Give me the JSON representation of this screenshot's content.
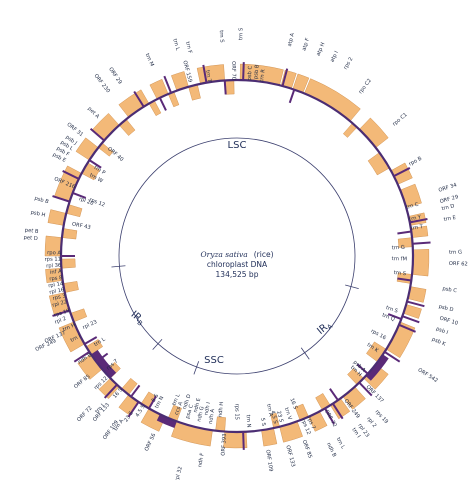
{
  "title": {
    "species": "Oryza sativa",
    "common": "(rice)",
    "line2": "chloroplast DNA",
    "line3": "134,525 bp"
  },
  "regions": [
    {
      "id": "LSC",
      "text": "LSC",
      "angle": 0
    },
    {
      "id": "IRA",
      "text": "IRA",
      "angle": 122
    },
    {
      "id": "SSC",
      "text": "SSC",
      "angle": 180
    },
    {
      "id": "IRB",
      "text": "IRB",
      "angle": 238
    }
  ],
  "colors": {
    "gene": "#f3b978",
    "gene_edge": "#c98643",
    "trna": "#5a2a78",
    "ring": "#4b2d73",
    "label": "#1f2a44",
    "spoke": "#3b3f6e"
  },
  "genes": [
    {
      "a1": 1,
      "a2": 14,
      "side": "out"
    },
    {
      "a1": 14.5,
      "a2": 18,
      "side": "out"
    },
    {
      "a1": 18.5,
      "a2": 22,
      "side": "out"
    },
    {
      "a1": 22.5,
      "a2": 40,
      "side": "out"
    },
    {
      "a1": 44,
      "a2": 52,
      "side": "out"
    },
    {
      "a1": 61,
      "a2": 66,
      "side": "out"
    },
    {
      "a1": 68,
      "a2": 74,
      "side": "out"
    },
    {
      "a1": 77,
      "a2": 80,
      "side": "out"
    },
    {
      "a1": 81,
      "a2": 84,
      "side": "out"
    },
    {
      "a1": 88,
      "a2": 96,
      "side": "out"
    },
    {
      "a1": 100,
      "a2": 104,
      "side": "out"
    },
    {
      "a1": 106,
      "a2": 109,
      "side": "out"
    },
    {
      "a1": 112,
      "a2": 122,
      "side": "out"
    },
    {
      "a1": 128,
      "a2": 134,
      "side": "out"
    },
    {
      "a1": 138,
      "a2": 143,
      "side": "out"
    },
    {
      "a1": 144,
      "a2": 148,
      "side": "out"
    },
    {
      "a1": 152,
      "a2": 156,
      "side": "out"
    },
    {
      "a1": 160,
      "a2": 166,
      "side": "out"
    },
    {
      "a1": 168,
      "a2": 172,
      "side": "out"
    },
    {
      "a1": 177,
      "a2": 184,
      "side": "out"
    },
    {
      "a1": 188,
      "a2": 200,
      "side": "out"
    },
    {
      "a1": 204,
      "a2": 210,
      "side": "out"
    },
    {
      "a1": 214,
      "a2": 218,
      "side": "out"
    },
    {
      "a1": 222,
      "a2": 226,
      "side": "out"
    },
    {
      "a1": 230,
      "a2": 236,
      "side": "out"
    },
    {
      "a1": 240,
      "a2": 248,
      "side": "out"
    },
    {
      "a1": 252,
      "a2": 258,
      "side": "out"
    },
    {
      "a1": 262,
      "a2": 266,
      "side": "out"
    },
    {
      "a1": 270,
      "a2": 276,
      "side": "out"
    },
    {
      "a1": 280,
      "a2": 284,
      "side": "out"
    },
    {
      "a1": 288,
      "a2": 298,
      "side": "out"
    },
    {
      "a1": 303,
      "a2": 308,
      "side": "out"
    },
    {
      "a1": 311,
      "a2": 318,
      "side": "out"
    },
    {
      "a1": 322,
      "a2": 330,
      "side": "out"
    },
    {
      "a1": 333,
      "a2": 337,
      "side": "out"
    },
    {
      "a1": 340,
      "a2": 344,
      "side": "out"
    },
    {
      "a1": 348,
      "a2": 356,
      "side": "out"
    },
    {
      "a1": 41,
      "a2": 43,
      "side": "in"
    },
    {
      "a1": 54,
      "a2": 60,
      "side": "in"
    },
    {
      "a1": 84,
      "a2": 87,
      "side": "in"
    },
    {
      "a1": 96,
      "a2": 99,
      "side": "in"
    },
    {
      "a1": 122,
      "a2": 127,
      "side": "in"
    },
    {
      "a1": 134,
      "a2": 137,
      "side": "in"
    },
    {
      "a1": 148,
      "a2": 151,
      "side": "in"
    },
    {
      "a1": 156,
      "a2": 159,
      "side": "in"
    },
    {
      "a1": 166,
      "a2": 168,
      "side": "in"
    },
    {
      "a1": 184,
      "a2": 187,
      "side": "in"
    },
    {
      "a1": 200,
      "a2": 203,
      "side": "in"
    },
    {
      "a1": 210,
      "a2": 213,
      "side": "in"
    },
    {
      "a1": 218,
      "a2": 221,
      "side": "in"
    },
    {
      "a1": 226,
      "a2": 229,
      "side": "in"
    },
    {
      "a1": 236,
      "a2": 239,
      "side": "in"
    },
    {
      "a1": 248,
      "a2": 251,
      "side": "in"
    },
    {
      "a1": 258,
      "a2": 261,
      "side": "in"
    },
    {
      "a1": 266,
      "a2": 269,
      "side": "in"
    },
    {
      "a1": 276,
      "a2": 279,
      "side": "in"
    },
    {
      "a1": 284,
      "a2": 287,
      "side": "in"
    },
    {
      "a1": 298,
      "a2": 302,
      "side": "in"
    },
    {
      "a1": 308,
      "a2": 310,
      "side": "in"
    },
    {
      "a1": 318,
      "a2": 321,
      "side": "in"
    },
    {
      "a1": 330,
      "a2": 332,
      "side": "in"
    },
    {
      "a1": 337,
      "a2": 339,
      "side": "in"
    },
    {
      "a1": 344,
      "a2": 347,
      "side": "in"
    },
    {
      "a1": 356,
      "a2": 359,
      "side": "in"
    }
  ],
  "trnas": [
    {
      "a": 2,
      "side": "out"
    },
    {
      "a": 15,
      "side": "out"
    },
    {
      "a": 19,
      "side": "in"
    },
    {
      "a": 63,
      "side": "out"
    },
    {
      "a": 79,
      "side": "out"
    },
    {
      "a": 82,
      "side": "in"
    },
    {
      "a": 86,
      "side": "out"
    },
    {
      "a": 98,
      "side": "in"
    },
    {
      "a": 105,
      "side": "out"
    },
    {
      "a": 110,
      "side": "out"
    },
    {
      "a": 111,
      "side": "in"
    },
    {
      "a": 113,
      "side": "out"
    },
    {
      "a": 123,
      "side": "out"
    },
    {
      "a": 132,
      "side": "in"
    },
    {
      "a": 136,
      "side": "out"
    },
    {
      "a": 145,
      "side": "in"
    },
    {
      "a": 147,
      "side": "out"
    },
    {
      "a": 150,
      "side": "out"
    },
    {
      "a": 178,
      "side": "out"
    },
    {
      "a": 210,
      "side": "in"
    },
    {
      "a": 214,
      "side": "out"
    },
    {
      "a": 217,
      "side": "in"
    },
    {
      "a": 223,
      "side": "out"
    },
    {
      "a": 233,
      "side": "in"
    },
    {
      "a": 237,
      "side": "out"
    },
    {
      "a": 240,
      "side": "in"
    },
    {
      "a": 252,
      "side": "out"
    },
    {
      "a": 270,
      "side": "in"
    },
    {
      "a": 288,
      "side": "out"
    },
    {
      "a": 291,
      "side": "in"
    },
    {
      "a": 296,
      "side": "out"
    },
    {
      "a": 303,
      "side": "in"
    },
    {
      "a": 311,
      "side": "out"
    },
    {
      "a": 328,
      "side": "out"
    },
    {
      "a": 334,
      "side": "in"
    },
    {
      "a": 338,
      "side": "out"
    },
    {
      "a": 350,
      "side": "out"
    },
    {
      "a": 356,
      "side": "in"
    }
  ],
  "heavy_arcs": [
    {
      "a1": 124,
      "a2": 133,
      "side": "out"
    },
    {
      "a1": 200,
      "a2": 206,
      "side": "out"
    },
    {
      "a1": 226,
      "a2": 236,
      "side": "in"
    }
  ],
  "labels": [
    {
      "t": "trn S",
      "a": 1,
      "r": 216
    },
    {
      "t": "atp A",
      "a": 14,
      "r": 216
    },
    {
      "t": "atp F",
      "a": 18,
      "r": 216
    },
    {
      "t": "atp H",
      "a": 22,
      "r": 216
    },
    {
      "t": "atp I",
      "a": 26,
      "r": 216
    },
    {
      "t": "rps 2",
      "a": 30,
      "r": 216
    },
    {
      "t": "rpo C2",
      "a": 37,
      "r": 204
    },
    {
      "t": "rpo C1",
      "a": 50,
      "r": 204
    },
    {
      "t": "rpo B",
      "a": 62,
      "r": 195
    },
    {
      "t": "ORF 34",
      "a": 72,
      "r": 212
    },
    {
      "t": "trn C",
      "a": 74,
      "r": 176
    },
    {
      "t": "ORF 29",
      "a": 75,
      "r": 210
    },
    {
      "t": "trn D",
      "a": 77,
      "r": 210
    },
    {
      "t": "trn Y",
      "a": 78,
      "r": 176
    },
    {
      "t": "trn E",
      "a": 80,
      "r": 210
    },
    {
      "t": "trn T",
      "a": 81,
      "r": 176
    },
    {
      "t": "trn G",
      "a": 87,
      "r": 168
    },
    {
      "t": "trn G",
      "a": 89,
      "r": 212
    },
    {
      "t": "trn fM",
      "a": 91,
      "r": 170
    },
    {
      "t": "ORF 62",
      "a": 92,
      "r": 212
    },
    {
      "t": "trn S",
      "a": 96,
      "r": 170
    },
    {
      "t": "psb C",
      "a": 99,
      "r": 208
    },
    {
      "t": "psb D",
      "a": 104,
      "r": 208
    },
    {
      "t": "ORF 10",
      "a": 107,
      "r": 212
    },
    {
      "t": "trn S",
      "a": 109,
      "r": 170
    },
    {
      "t": "psb I",
      "a": 110,
      "r": 212
    },
    {
      "t": "trn Q",
      "a": 112,
      "r": 170
    },
    {
      "t": "psb K",
      "a": 113,
      "r": 212
    },
    {
      "t": "rps 16",
      "a": 119,
      "r": 170
    },
    {
      "t": "trn K",
      "a": 124,
      "r": 170
    },
    {
      "t": "ORF 542",
      "a": 122,
      "r": 214
    },
    {
      "t": "psb A",
      "a": 132,
      "r": 172
    },
    {
      "t": "trn H",
      "a": 134,
      "r": 172
    },
    {
      "t": "ORF 137",
      "a": 135,
      "r": 184
    },
    {
      "t": "rps 19",
      "a": 138,
      "r": 208
    },
    {
      "t": "rpl 2",
      "a": 141,
      "r": 208
    },
    {
      "t": "rpl 23",
      "a": 144,
      "r": 208
    },
    {
      "t": "trn I",
      "a": 146,
      "r": 208
    },
    {
      "t": "ORF 249",
      "a": 143,
      "r": 180
    },
    {
      "t": "ORF 72",
      "a": 150,
      "r": 178
    },
    {
      "t": "trn L",
      "a": 151,
      "r": 208
    },
    {
      "t": "ndh B",
      "a": 154,
      "r": 208
    },
    {
      "t": "rps 7",
      "a": 156,
      "r": 176
    },
    {
      "t": "rps 12",
      "a": 158,
      "r": 176
    },
    {
      "t": "16 S",
      "a": 159,
      "r": 164
    },
    {
      "t": "ORF 85",
      "a": 160,
      "r": 196
    },
    {
      "t": "trn V",
      "a": 162,
      "r": 172
    },
    {
      "t": "ORF 133",
      "a": 165,
      "r": 196
    },
    {
      "t": "23 S",
      "a": 165,
      "r": 172
    },
    {
      "t": "4.5 S",
      "a": 167,
      "r": 172
    },
    {
      "t": "trn A",
      "a": 168,
      "r": 164
    },
    {
      "t": "5 S",
      "a": 171,
      "r": 172
    },
    {
      "t": "ORF 109",
      "a": 171,
      "r": 196
    },
    {
      "t": "trn N",
      "a": 176,
      "r": 172
    },
    {
      "t": "ndh F",
      "a": 190,
      "r": 200
    },
    {
      "t": "rps 15",
      "a": 180,
      "r": 164
    },
    {
      "t": "ORF 393",
      "a": 184,
      "r": 178
    },
    {
      "t": "ndh H",
      "a": 186,
      "r": 162
    },
    {
      "t": "ndh A",
      "a": 189,
      "r": 170
    },
    {
      "t": "ndh I",
      "a": 191,
      "r": 162
    },
    {
      "t": "ndh G",
      "a": 193,
      "r": 170
    },
    {
      "t": "ndh E",
      "a": 195,
      "r": 162
    },
    {
      "t": "psa C",
      "a": 197,
      "r": 170
    },
    {
      "t": "ndh D",
      "a": 199,
      "r": 162
    },
    {
      "t": "ccs A",
      "a": 201,
      "r": 170
    },
    {
      "t": "trn L",
      "a": 203,
      "r": 162
    },
    {
      "t": "rpl 32",
      "a": 195,
      "r": 218
    },
    {
      "t": "ORF 56",
      "a": 205,
      "r": 196
    },
    {
      "t": "trn N",
      "a": 208,
      "r": 172
    },
    {
      "t": "5 S",
      "a": 210,
      "r": 168
    },
    {
      "t": "4.5 S",
      "a": 212,
      "r": 176
    },
    {
      "t": "23 S",
      "a": 214,
      "r": 188
    },
    {
      "t": "trn A",
      "a": 215,
      "r": 200
    },
    {
      "t": "16 S",
      "a": 221,
      "r": 176
    },
    {
      "t": "trn I",
      "a": 222,
      "r": 200
    },
    {
      "t": "ORF 72",
      "a": 224,
      "r": 210
    },
    {
      "t": "ORF 109",
      "a": 216,
      "r": 204
    },
    {
      "t": "ORF 133",
      "a": 221,
      "r": 196
    },
    {
      "t": "rps 12",
      "a": 227,
      "r": 178
    },
    {
      "t": "rps 7",
      "a": 229,
      "r": 172
    },
    {
      "t": "ORF 85",
      "a": 231,
      "r": 190
    },
    {
      "t": "ndh B",
      "a": 236,
      "r": 176
    },
    {
      "t": "trn L",
      "a": 238,
      "r": 168
    },
    {
      "t": "ORF 249",
      "a": 245,
      "r": 200
    },
    {
      "t": "trn H",
      "a": 247,
      "r": 176
    },
    {
      "t": "ORF 137",
      "a": 246,
      "r": 188
    },
    {
      "t": "trn I",
      "a": 243,
      "r": 176
    },
    {
      "t": "rpl 23",
      "a": 245,
      "r": 170
    },
    {
      "t": "rpl 2",
      "a": 250,
      "r": 182
    },
    {
      "t": "rps 19",
      "a": 252,
      "r": 176
    },
    {
      "t": "rpl 22",
      "a": 255,
      "r": 176
    },
    {
      "t": "rps 3",
      "a": 257,
      "r": 176
    },
    {
      "t": "rpl 16",
      "a": 259,
      "r": 176
    },
    {
      "t": "rpl 14",
      "a": 261,
      "r": 176
    },
    {
      "t": "rps 8",
      "a": 263,
      "r": 176
    },
    {
      "t": "inf A",
      "a": 265,
      "r": 176
    },
    {
      "t": "rpl 36",
      "a": 267,
      "r": 176
    },
    {
      "t": "rps 11",
      "a": 269,
      "r": 176
    },
    {
      "t": "rpo A",
      "a": 271,
      "r": 176
    },
    {
      "t": "pet D",
      "a": 275,
      "r": 200
    },
    {
      "t": "pet B",
      "a": 277,
      "r": 200
    },
    {
      "t": "psb H",
      "a": 282,
      "r": 196
    },
    {
      "t": "psb B",
      "a": 286,
      "r": 196
    },
    {
      "t": "ORF 43",
      "a": 281,
      "r": 168
    },
    {
      "t": "rpl 20",
      "a": 290,
      "r": 168
    },
    {
      "t": "ORF 216",
      "a": 293,
      "r": 176
    },
    {
      "t": "rps 12",
      "a": 291,
      "r": 158
    },
    {
      "t": "psb E",
      "a": 299,
      "r": 196
    },
    {
      "t": "psb F",
      "a": 301,
      "r": 196
    },
    {
      "t": "psb L",
      "a": 303,
      "r": 196
    },
    {
      "t": "psb J",
      "a": 305,
      "r": 196
    },
    {
      "t": "trn W",
      "a": 299,
      "r": 168
    },
    {
      "t": "trn P",
      "a": 302,
      "r": 168
    },
    {
      "t": "ORF 31",
      "a": 308,
      "r": 196
    },
    {
      "t": "ORF 40",
      "a": 310,
      "r": 168
    },
    {
      "t": "pet A",
      "a": 315,
      "r": 196
    },
    {
      "t": "ORF 230",
      "a": 322,
      "r": 208
    },
    {
      "t": "ORF 29",
      "a": 326,
      "r": 208
    },
    {
      "t": "trn M",
      "a": 336,
      "r": 208
    },
    {
      "t": "ORF 159",
      "a": 345,
      "r": 180
    },
    {
      "t": "trn L",
      "a": 344,
      "r": 214
    },
    {
      "t": "trn F",
      "a": 347,
      "r": 208
    },
    {
      "t": "trn T",
      "a": 351,
      "r": 176
    },
    {
      "t": "trn S",
      "a": 356,
      "r": 214
    },
    {
      "t": "ORF 70",
      "a": 359,
      "r": 176
    },
    {
      "t": "psb C",
      "a": 4,
      "r": 176
    },
    {
      "t": "psb B",
      "a": 6,
      "r": 178
    },
    {
      "t": "trn R",
      "a": 8,
      "r": 176
    }
  ]
}
